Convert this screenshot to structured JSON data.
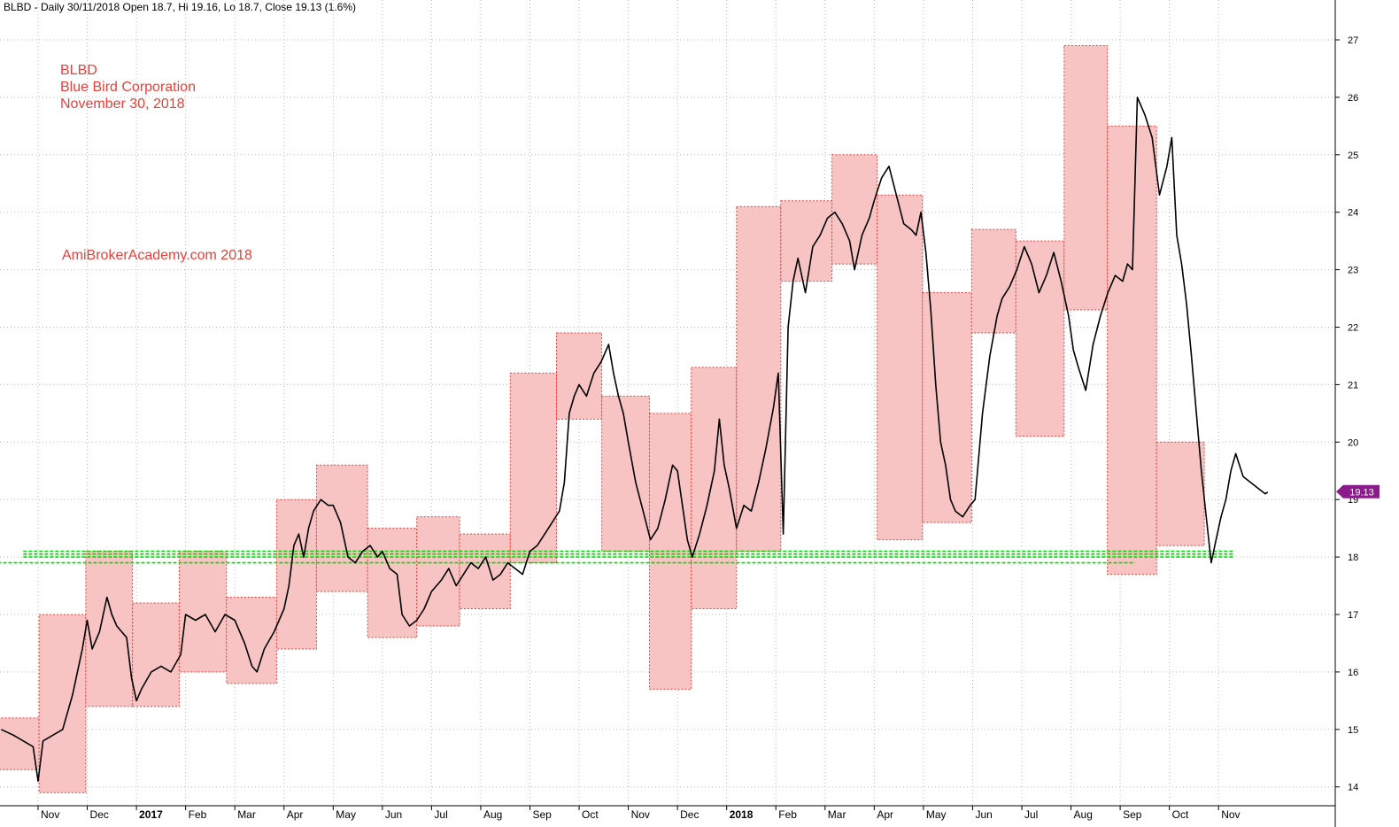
{
  "header": {
    "line": "BLBD - Daily 30/11/2018 Open 18.7, Hi 19.16, Lo 18.7, Close 19.13 (1.6%)"
  },
  "annotations": {
    "ticker": "BLBD",
    "company": "Blue Bird Corporation",
    "date": "November 30, 2018",
    "watermark": "AmiBrokerAcademy.com  2018"
  },
  "price_tag": {
    "value": "19.13",
    "color": "#8b1a8b"
  },
  "colors": {
    "box_fill": "#f7c3c3",
    "box_border": "#e8403a",
    "support_line": "#00e000",
    "price": "#000000",
    "grid": "#bbbbbb"
  },
  "chart_data": {
    "type": "line",
    "title": "",
    "xlabel": "",
    "ylabel": "",
    "ylim": [
      13.5,
      27.5
    ],
    "y_ticks": [
      14,
      15,
      16,
      17,
      18,
      19,
      20,
      21,
      22,
      23,
      24,
      25,
      26,
      27
    ],
    "x_tick_labels": [
      {
        "label": "Nov",
        "month": 0,
        "bold": false
      },
      {
        "label": "Dec",
        "month": 1,
        "bold": false
      },
      {
        "label": "2017",
        "month": 2,
        "bold": true
      },
      {
        "label": "Feb",
        "month": 3,
        "bold": false
      },
      {
        "label": "Mar",
        "month": 4,
        "bold": false
      },
      {
        "label": "Apr",
        "month": 5,
        "bold": false
      },
      {
        "label": "May",
        "month": 6,
        "bold": false
      },
      {
        "label": "Jun",
        "month": 7,
        "bold": false
      },
      {
        "label": "Jul",
        "month": 8,
        "bold": false
      },
      {
        "label": "Aug",
        "month": 9,
        "bold": false
      },
      {
        "label": "Sep",
        "month": 10,
        "bold": false
      },
      {
        "label": "Oct",
        "month": 11,
        "bold": false
      },
      {
        "label": "Nov",
        "month": 12,
        "bold": false
      },
      {
        "label": "Dec",
        "month": 13,
        "bold": false
      },
      {
        "label": "2018",
        "month": 14,
        "bold": true
      },
      {
        "label": "Feb",
        "month": 15,
        "bold": false
      },
      {
        "label": "Mar",
        "month": 16,
        "bold": false
      },
      {
        "label": "Apr",
        "month": 17,
        "bold": false
      },
      {
        "label": "May",
        "month": 18,
        "bold": false
      },
      {
        "label": "Jun",
        "month": 19,
        "bold": false
      },
      {
        "label": "Jul",
        "month": 20,
        "bold": false
      },
      {
        "label": "Aug",
        "month": 21,
        "bold": false
      },
      {
        "label": "Sep",
        "month": 22,
        "bold": false
      },
      {
        "label": "Oct",
        "month": 23,
        "bold": false
      },
      {
        "label": "Nov",
        "month": 24,
        "bold": false
      }
    ],
    "series": [
      {
        "points": [
          [
            -0.75,
            15.0
          ],
          [
            -0.5,
            14.9
          ],
          [
            -0.3,
            14.8
          ],
          [
            -0.1,
            14.7
          ],
          [
            0.0,
            14.1
          ],
          [
            0.1,
            14.8
          ],
          [
            0.3,
            14.9
          ],
          [
            0.5,
            15.0
          ],
          [
            0.7,
            15.6
          ],
          [
            0.9,
            16.4
          ],
          [
            1.0,
            16.9
          ],
          [
            1.1,
            16.4
          ],
          [
            1.25,
            16.7
          ],
          [
            1.4,
            17.3
          ],
          [
            1.5,
            17.0
          ],
          [
            1.6,
            16.8
          ],
          [
            1.8,
            16.6
          ],
          [
            1.9,
            15.9
          ],
          [
            2.0,
            15.5
          ],
          [
            2.1,
            15.7
          ],
          [
            2.3,
            16.0
          ],
          [
            2.5,
            16.1
          ],
          [
            2.7,
            16.0
          ],
          [
            2.9,
            16.3
          ],
          [
            3.0,
            17.0
          ],
          [
            3.2,
            16.9
          ],
          [
            3.4,
            17.0
          ],
          [
            3.6,
            16.7
          ],
          [
            3.8,
            17.0
          ],
          [
            4.0,
            16.9
          ],
          [
            4.2,
            16.5
          ],
          [
            4.35,
            16.1
          ],
          [
            4.45,
            16.0
          ],
          [
            4.6,
            16.4
          ],
          [
            4.8,
            16.7
          ],
          [
            5.0,
            17.1
          ],
          [
            5.1,
            17.5
          ],
          [
            5.2,
            18.2
          ],
          [
            5.3,
            18.4
          ],
          [
            5.4,
            18.0
          ],
          [
            5.5,
            18.5
          ],
          [
            5.6,
            18.8
          ],
          [
            5.75,
            19.0
          ],
          [
            5.9,
            18.9
          ],
          [
            6.0,
            18.9
          ],
          [
            6.15,
            18.6
          ],
          [
            6.3,
            18.0
          ],
          [
            6.45,
            17.9
          ],
          [
            6.6,
            18.1
          ],
          [
            6.75,
            18.2
          ],
          [
            6.9,
            18.0
          ],
          [
            7.0,
            18.1
          ],
          [
            7.15,
            17.8
          ],
          [
            7.3,
            17.7
          ],
          [
            7.4,
            17.0
          ],
          [
            7.55,
            16.8
          ],
          [
            7.7,
            16.9
          ],
          [
            7.85,
            17.1
          ],
          [
            8.0,
            17.4
          ],
          [
            8.2,
            17.6
          ],
          [
            8.35,
            17.8
          ],
          [
            8.5,
            17.5
          ],
          [
            8.65,
            17.7
          ],
          [
            8.8,
            17.9
          ],
          [
            8.95,
            17.8
          ],
          [
            9.1,
            18.0
          ],
          [
            9.25,
            17.6
          ],
          [
            9.4,
            17.7
          ],
          [
            9.55,
            17.9
          ],
          [
            9.7,
            17.8
          ],
          [
            9.85,
            17.7
          ],
          [
            10.0,
            18.1
          ],
          [
            10.15,
            18.2
          ],
          [
            10.3,
            18.4
          ],
          [
            10.45,
            18.6
          ],
          [
            10.6,
            18.8
          ],
          [
            10.7,
            19.3
          ],
          [
            10.8,
            20.5
          ],
          [
            10.9,
            20.8
          ],
          [
            11.0,
            21.0
          ],
          [
            11.15,
            20.8
          ],
          [
            11.3,
            21.2
          ],
          [
            11.45,
            21.4
          ],
          [
            11.6,
            21.7
          ],
          [
            11.7,
            21.2
          ],
          [
            11.8,
            20.8
          ],
          [
            11.9,
            20.5
          ],
          [
            12.0,
            20.0
          ],
          [
            12.15,
            19.3
          ],
          [
            12.3,
            18.8
          ],
          [
            12.45,
            18.3
          ],
          [
            12.6,
            18.5
          ],
          [
            12.75,
            19.0
          ],
          [
            12.9,
            19.6
          ],
          [
            13.0,
            19.5
          ],
          [
            13.1,
            18.9
          ],
          [
            13.2,
            18.3
          ],
          [
            13.3,
            18.0
          ],
          [
            13.45,
            18.4
          ],
          [
            13.6,
            18.9
          ],
          [
            13.75,
            19.5
          ],
          [
            13.85,
            20.4
          ],
          [
            13.95,
            19.6
          ],
          [
            14.05,
            19.2
          ],
          [
            14.2,
            18.5
          ],
          [
            14.35,
            18.9
          ],
          [
            14.5,
            18.8
          ],
          [
            14.65,
            19.3
          ],
          [
            14.8,
            19.9
          ],
          [
            14.95,
            20.6
          ],
          [
            15.05,
            21.2
          ],
          [
            15.15,
            18.4
          ],
          [
            15.25,
            22.0
          ],
          [
            15.35,
            22.8
          ],
          [
            15.45,
            23.2
          ],
          [
            15.6,
            22.6
          ],
          [
            15.75,
            23.4
          ],
          [
            15.9,
            23.6
          ],
          [
            16.05,
            23.9
          ],
          [
            16.2,
            24.0
          ],
          [
            16.35,
            23.8
          ],
          [
            16.5,
            23.5
          ],
          [
            16.6,
            23.0
          ],
          [
            16.75,
            23.6
          ],
          [
            16.9,
            23.9
          ],
          [
            17.0,
            24.2
          ],
          [
            17.15,
            24.6
          ],
          [
            17.3,
            24.8
          ],
          [
            17.45,
            24.3
          ],
          [
            17.6,
            23.8
          ],
          [
            17.75,
            23.7
          ],
          [
            17.85,
            23.6
          ],
          [
            17.95,
            24.0
          ],
          [
            18.05,
            23.3
          ],
          [
            18.15,
            22.3
          ],
          [
            18.25,
            21.0
          ],
          [
            18.35,
            20.0
          ],
          [
            18.45,
            19.6
          ],
          [
            18.55,
            19.0
          ],
          [
            18.65,
            18.8
          ],
          [
            18.8,
            18.7
          ],
          [
            18.95,
            18.9
          ],
          [
            19.05,
            19.0
          ],
          [
            19.2,
            20.5
          ],
          [
            19.35,
            21.5
          ],
          [
            19.5,
            22.2
          ],
          [
            19.6,
            22.5
          ],
          [
            19.75,
            22.7
          ],
          [
            19.9,
            23.0
          ],
          [
            20.05,
            23.4
          ],
          [
            20.2,
            23.1
          ],
          [
            20.35,
            22.6
          ],
          [
            20.5,
            22.9
          ],
          [
            20.65,
            23.3
          ],
          [
            20.8,
            22.8
          ],
          [
            20.95,
            22.2
          ],
          [
            21.05,
            21.6
          ],
          [
            21.15,
            21.3
          ],
          [
            21.3,
            20.9
          ],
          [
            21.45,
            21.7
          ],
          [
            21.6,
            22.2
          ],
          [
            21.75,
            22.6
          ],
          [
            21.9,
            22.9
          ],
          [
            22.05,
            22.8
          ],
          [
            22.15,
            23.1
          ],
          [
            22.25,
            23.0
          ],
          [
            22.35,
            26.0
          ],
          [
            22.5,
            25.7
          ],
          [
            22.65,
            25.3
          ],
          [
            22.8,
            24.3
          ],
          [
            22.95,
            24.8
          ],
          [
            23.05,
            25.3
          ],
          [
            23.15,
            23.6
          ],
          [
            23.25,
            23.1
          ],
          [
            23.35,
            22.4
          ],
          [
            23.45,
            21.5
          ],
          [
            23.55,
            20.5
          ],
          [
            23.65,
            19.5
          ],
          [
            23.75,
            18.7
          ],
          [
            23.85,
            17.9
          ],
          [
            23.95,
            18.3
          ],
          [
            24.05,
            18.7
          ],
          [
            24.15,
            19.0
          ],
          [
            24.25,
            19.5
          ],
          [
            24.35,
            19.8
          ],
          [
            24.5,
            19.4
          ],
          [
            24.65,
            19.3
          ],
          [
            24.8,
            19.2
          ],
          [
            24.95,
            19.1
          ],
          [
            25.0,
            19.13
          ]
        ]
      }
    ],
    "boxes": [
      {
        "x0": -0.82,
        "x1": 0.02,
        "low": 14.3,
        "high": 15.2
      },
      {
        "x0": 0.02,
        "x1": 0.97,
        "low": 13.9,
        "high": 17.0
      },
      {
        "x0": 0.97,
        "x1": 1.92,
        "low": 15.4,
        "high": 18.1
      },
      {
        "x0": 1.92,
        "x1": 2.87,
        "low": 15.4,
        "high": 17.2
      },
      {
        "x0": 2.87,
        "x1": 3.83,
        "low": 16.0,
        "high": 18.1
      },
      {
        "x0": 3.83,
        "x1": 4.85,
        "low": 15.8,
        "high": 17.3
      },
      {
        "x0": 4.85,
        "x1": 5.66,
        "low": 16.4,
        "high": 19.0
      },
      {
        "x0": 5.66,
        "x1": 6.7,
        "low": 17.4,
        "high": 19.6
      },
      {
        "x0": 6.7,
        "x1": 7.7,
        "low": 16.6,
        "high": 18.5
      },
      {
        "x0": 7.7,
        "x1": 8.57,
        "low": 16.8,
        "high": 18.7
      },
      {
        "x0": 8.57,
        "x1": 9.6,
        "low": 17.1,
        "high": 18.4
      },
      {
        "x0": 9.6,
        "x1": 10.54,
        "low": 17.9,
        "high": 21.2
      },
      {
        "x0": 10.54,
        "x1": 11.46,
        "low": 20.4,
        "high": 21.9
      },
      {
        "x0": 11.46,
        "x1": 12.43,
        "low": 18.1,
        "high": 20.8
      },
      {
        "x0": 12.43,
        "x1": 13.28,
        "low": 15.7,
        "high": 20.5
      },
      {
        "x0": 13.28,
        "x1": 14.2,
        "low": 17.1,
        "high": 21.3
      },
      {
        "x0": 14.2,
        "x1": 15.1,
        "low": 18.1,
        "high": 24.1
      },
      {
        "x0": 15.1,
        "x1": 16.14,
        "low": 22.8,
        "high": 24.2
      },
      {
        "x0": 16.14,
        "x1": 17.06,
        "low": 23.1,
        "high": 25.0
      },
      {
        "x0": 17.06,
        "x1": 17.98,
        "low": 18.3,
        "high": 24.3
      },
      {
        "x0": 17.98,
        "x1": 18.98,
        "low": 18.6,
        "high": 22.6
      },
      {
        "x0": 18.98,
        "x1": 19.88,
        "low": 21.9,
        "high": 23.7
      },
      {
        "x0": 19.88,
        "x1": 20.86,
        "low": 20.1,
        "high": 23.5
      },
      {
        "x0": 20.86,
        "x1": 21.74,
        "low": 22.3,
        "high": 26.9
      },
      {
        "x0": 21.74,
        "x1": 22.74,
        "low": 17.7,
        "high": 25.5
      },
      {
        "x0": 22.74,
        "x1": 23.71,
        "low": 18.2,
        "high": 20.0
      }
    ],
    "support_lines": [
      {
        "x0": -0.3,
        "x1": 24.3,
        "y": 18.1
      },
      {
        "x0": -0.3,
        "x1": 24.3,
        "y": 18.05
      },
      {
        "x0": -0.3,
        "x1": 24.3,
        "y": 18.0
      },
      {
        "x0": -0.82,
        "x1": 22.3,
        "y": 17.9
      }
    ]
  }
}
